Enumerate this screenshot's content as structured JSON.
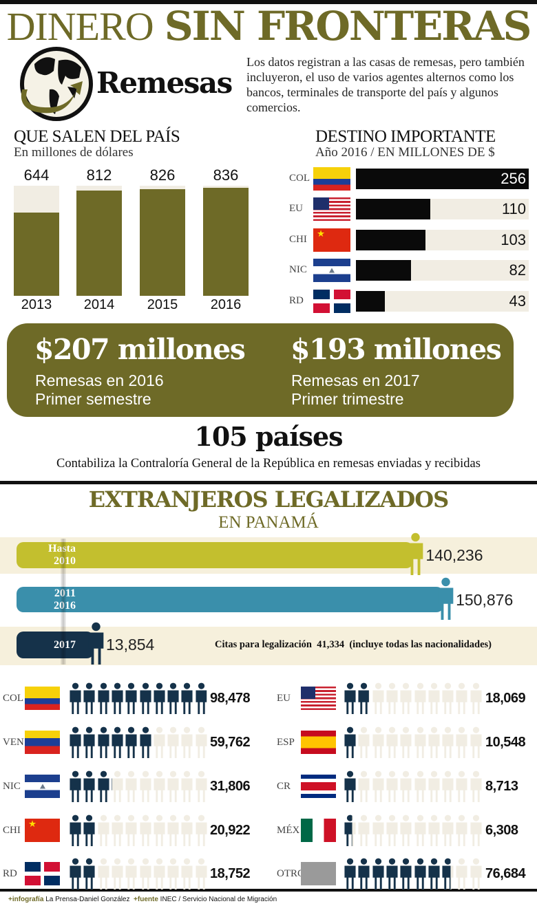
{
  "header": {
    "title_light": "DINERO",
    "title_bold": "SIN FRONTERAS"
  },
  "remesas": {
    "label": "Remesas",
    "description": "Los datos registran a las casas de remesas, pero también incluyeron, el uso de varios agentes alternos como los bancos, terminales de transporte del país y algunos comercios."
  },
  "chart_data": [
    {
      "type": "bar",
      "title": "QUE SALEN DEL PAÍS",
      "subtitle": "En millones de dólares",
      "categories": [
        "2013",
        "2014",
        "2015",
        "2016"
      ],
      "values": [
        644,
        812,
        826,
        836
      ],
      "labels": [
        "644",
        "812",
        "826",
        "836"
      ],
      "ylim": [
        0,
        850
      ]
    },
    {
      "type": "bar",
      "orientation": "horizontal",
      "title": "DESTINO IMPORTANTE",
      "subtitle": "Año 2016 / EN MILLONES DE $",
      "categories": [
        "COL",
        "EU",
        "CHI",
        "NIC",
        "RD"
      ],
      "values": [
        256,
        110,
        103,
        82,
        43
      ],
      "labels": [
        "256",
        "110",
        "103",
        "82",
        "43"
      ],
      "xlim": [
        0,
        256
      ]
    },
    {
      "type": "bar",
      "orientation": "horizontal",
      "title": "EXTRANJEROS LEGALIZADOS",
      "subtitle": "EN PANAMÁ",
      "categories": [
        [
          "Hasta",
          "2010"
        ],
        [
          "2011",
          "2016"
        ],
        [
          "2017"
        ]
      ],
      "values": [
        140236,
        150876,
        13854
      ],
      "labels": [
        "140,236",
        "150,876",
        "13,854"
      ],
      "colors": [
        "#c3bf2e",
        "#3a8fab",
        "#15324a"
      ]
    },
    {
      "type": "pictogram",
      "unit": 10000,
      "icons_per_row": 10,
      "categories": [
        "COL",
        "VEN",
        "NIC",
        "CHI",
        "RD",
        "EU",
        "ESP",
        "CR",
        "MÉX",
        "OTROS"
      ],
      "values": [
        98478,
        59762,
        31806,
        20922,
        18752,
        18069,
        10548,
        8713,
        6308,
        76684
      ],
      "labels": [
        "98,478",
        "59,762",
        "31,806",
        "20,922",
        "18,752",
        "18,069",
        "10,548",
        "8,713",
        "6,308",
        "76,684"
      ]
    }
  ],
  "highlights": [
    {
      "amount": "$207 millones",
      "line1": "Remesas en 2016",
      "line2": "Primer semestre"
    },
    {
      "amount": "$193 millones",
      "line1": "Remesas en 2017",
      "line2": "Primer trimestre"
    }
  ],
  "countries": {
    "count": "105 países",
    "caption": "Contabiliza la Contraloría General de la República en remesas enviadas y recibidas"
  },
  "citas": {
    "label": "Citas para legalización",
    "value": "41,334",
    "note": "(incluye todas las nacionalidades)"
  },
  "footer": {
    "infografia_label": "+infografía",
    "infografia": "La Prensa-Daniel González",
    "fuente_label": "+fuente",
    "fuente": "INEC / Servicio Nacional de Migración"
  },
  "colors": {
    "olive": "#6e6a27",
    "dark_icon": "#15324a",
    "light_icon": "#f1ede3"
  }
}
